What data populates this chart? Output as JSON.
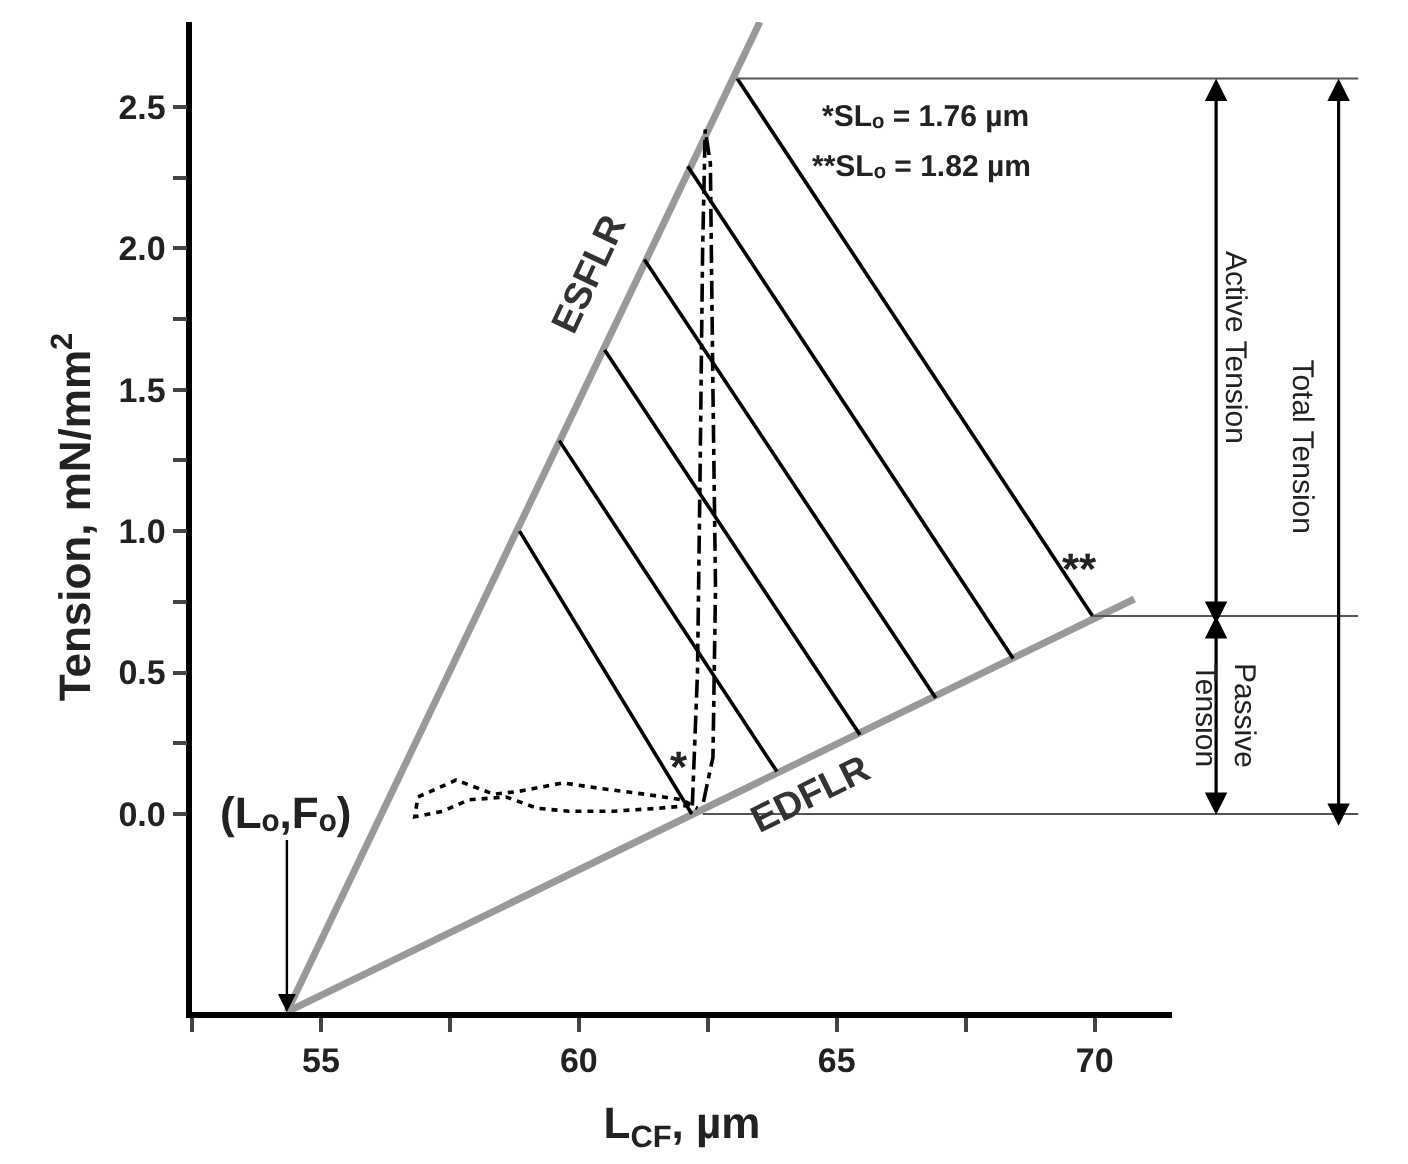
{
  "chart_data": {
    "type": "line",
    "xlabel": "L$_{CF}$, µm",
    "ylabel": "Tension, mN/mm$^{2}$",
    "xlim": [
      52.5,
      71.5
    ],
    "ylim": [
      -0.7,
      2.8
    ],
    "xticks": [
      {
        "value": 52.5,
        "label": null
      },
      55,
      {
        "value": 57.5,
        "label": null
      },
      60,
      {
        "value": 62.5,
        "label": null
      },
      65,
      {
        "value": 67.5,
        "label": null
      },
      70
    ],
    "yticks": [
      {
        "value": 0,
        "label": "0.0"
      },
      {
        "value": 0.25,
        "label": null
      },
      0.5,
      {
        "value": 0.75,
        "label": null
      },
      {
        "value": 1,
        "label": "1.0"
      },
      {
        "value": 1.25,
        "label": null
      },
      1.5,
      {
        "value": 1.75,
        "label": null
      },
      {
        "value": 2,
        "label": "2.0"
      },
      {
        "value": 2.25,
        "label": null
      },
      2.5
    ],
    "legend": false,
    "marker": "none",
    "series": [
      {
        "name": "ESFLR",
        "color": "#999999",
        "x": [
          54.34,
          63.51
        ],
        "values": [
          -0.7,
          2.8
        ]
      },
      {
        "name": "EDFLR",
        "color": "#999999",
        "x": [
          54.34,
          70.77
        ],
        "values": [
          -0.7,
          0.76
        ]
      },
      {
        "color": "#000000",
        "x": [
          58.85,
          62.19
        ],
        "values": [
          1.0,
          0.0
        ]
      },
      {
        "color": "#000000",
        "x": [
          59.62,
          63.84
        ],
        "values": [
          1.32,
          0.15
        ]
      },
      {
        "color": "#000000",
        "x": [
          60.5,
          65.45
        ],
        "values": [
          1.64,
          0.28
        ]
      },
      {
        "color": "#000000",
        "x": [
          61.27,
          66.92
        ],
        "values": [
          1.96,
          0.41
        ]
      },
      {
        "color": "#000000",
        "x": [
          62.11,
          68.42
        ],
        "values": [
          2.29,
          0.55
        ]
      },
      {
        "color": "#000000",
        "x": [
          63.07,
          69.96
        ],
        "values": [
          2.6,
          0.7
        ]
      },
      {
        "color": "#000000",
        "line_style": "dotted",
        "x": [
          62.14,
          61.53,
          60.67,
          59.81,
          59.2,
          58.59,
          57.86,
          57.37,
          56.82,
          56.88,
          57.62,
          58.35,
          58.84,
          59.69,
          60.43,
          61.28,
          62.01,
          62.3
        ],
        "values": [
          0.03,
          0.02,
          0.01,
          0.01,
          0.02,
          0.06,
          0.05,
          0.01,
          -0.01,
          0.06,
          0.12,
          0.07,
          0.08,
          0.11,
          0.09,
          0.07,
          0.05,
          0.02
        ]
      },
      {
        "color": "#000000",
        "line_style": "dashdot",
        "x": [
          62.2,
          62.3,
          62.35,
          62.4,
          62.45,
          62.55,
          62.6,
          62.65,
          62.6,
          62.4
        ],
        "values": [
          0.03,
          0.5,
          1.2,
          2.0,
          2.42,
          2.3,
          1.5,
          0.8,
          0.2,
          0.03
        ]
      }
    ],
    "ref_lines": [
      {
        "axis": "y",
        "value": 2.6,
        "color": "#555555"
      },
      {
        "axis": "y",
        "value": 0.7,
        "color": "#555555"
      },
      {
        "axis": "y",
        "value": 0,
        "color": "#555555"
      }
    ],
    "annotations": [
      "*SLₒ = 1.76 µm",
      "**SLₒ = 1.82 µm",
      "Active Tension",
      "Passive\nTension",
      "Total Tension",
      {
        "text": "(Lₒ,Fₒ)",
        "x": 54.34,
        "y": -0.7
      },
      {
        "text": "*",
        "x": 62.19,
        "y": 0.0
      },
      {
        "text": "**",
        "x": 69.96,
        "y": 0.7
      }
    ]
  }
}
